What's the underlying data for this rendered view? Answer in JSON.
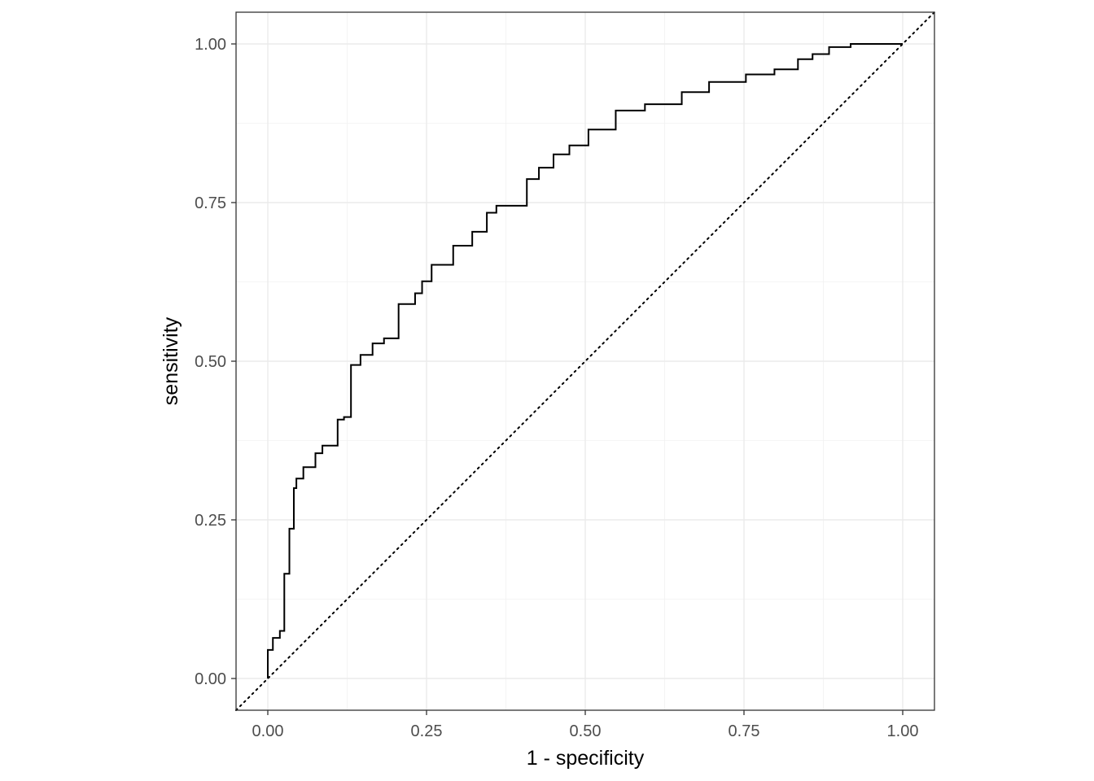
{
  "chart_data": {
    "type": "line",
    "title": "",
    "xlabel": "1 - specificity",
    "ylabel": "sensitivity",
    "xlim": [
      -0.05,
      1.05
    ],
    "ylim": [
      -0.05,
      1.05
    ],
    "x_ticks": [
      0,
      0.25,
      0.5,
      0.75,
      1
    ],
    "x_tick_labels": [
      "0.00",
      "0.25",
      "0.50",
      "0.75",
      "1.00"
    ],
    "y_ticks": [
      0,
      0.25,
      0.5,
      0.75,
      1
    ],
    "y_tick_labels": [
      "0.00",
      "0.25",
      "0.50",
      "0.75",
      "1.00"
    ],
    "grid": true,
    "legend": "none",
    "colors": {
      "curve": "#000000",
      "panel_border": "#333333",
      "grid": "#ebebeb"
    },
    "series": [
      {
        "step": true,
        "x": [
          0,
          0,
          0.008,
          0.008,
          0.019,
          0.019,
          0.026,
          0.026,
          0.034,
          0.034,
          0.041,
          0.041,
          0.045,
          0.045,
          0.056,
          0.056,
          0.075,
          0.075,
          0.086,
          0.086,
          0.11,
          0.11,
          0.12,
          0.12,
          0.131,
          0.131,
          0.146,
          0.146,
          0.165,
          0.165,
          0.183,
          0.183,
          0.206,
          0.206,
          0.232,
          0.232,
          0.243,
          0.243,
          0.258,
          0.258,
          0.292,
          0.292,
          0.322,
          0.322,
          0.345,
          0.345,
          0.36,
          0.36,
          0.408,
          0.408,
          0.427,
          0.427,
          0.45,
          0.45,
          0.475,
          0.475,
          0.505,
          0.505,
          0.548,
          0.548,
          0.594,
          0.594,
          0.652,
          0.652,
          0.695,
          0.695,
          0.753,
          0.753,
          0.798,
          0.798,
          0.835,
          0.835,
          0.858,
          0.858,
          0.884,
          0.884,
          0.918,
          0.918,
          0.955,
          0.955,
          0.98,
          1
        ],
        "y": [
          0,
          0.045,
          0.045,
          0.064,
          0.064,
          0.075,
          0.075,
          0.165,
          0.165,
          0.236,
          0.236,
          0.3,
          0.3,
          0.315,
          0.315,
          0.333,
          0.333,
          0.355,
          0.355,
          0.367,
          0.367,
          0.408,
          0.408,
          0.412,
          0.412,
          0.494,
          0.494,
          0.51,
          0.51,
          0.528,
          0.528,
          0.536,
          0.536,
          0.59,
          0.59,
          0.607,
          0.607,
          0.626,
          0.626,
          0.652,
          0.652,
          0.682,
          0.682,
          0.704,
          0.704,
          0.734,
          0.734,
          0.745,
          0.745,
          0.787,
          0.787,
          0.805,
          0.805,
          0.826,
          0.826,
          0.84,
          0.84,
          0.865,
          0.865,
          0.895,
          0.895,
          0.905,
          0.905,
          0.924,
          0.924,
          0.94,
          0.94,
          0.952,
          0.952,
          0.96,
          0.96,
          0.976,
          0.976,
          0.984,
          0.984,
          0.995,
          0.995,
          1,
          1,
          1,
          1,
          1
        ]
      },
      {
        "style": "dotted",
        "x": [
          -0.05,
          1.05
        ],
        "y": [
          -0.05,
          1.05
        ]
      }
    ]
  }
}
